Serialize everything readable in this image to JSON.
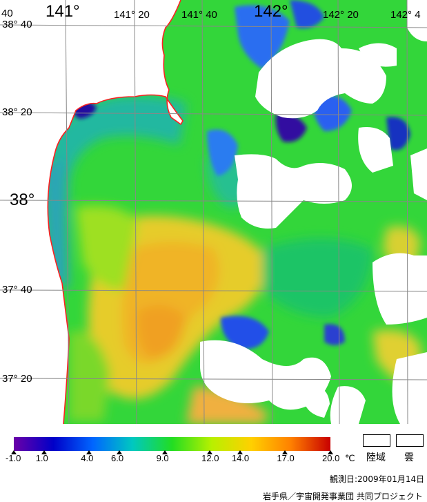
{
  "map": {
    "lon_labels": [
      "141°",
      "141° 20",
      "141° 40",
      "142°",
      "142° 20",
      "142° 4"
    ],
    "lat_labels": [
      "38° 40",
      "38° 20",
      "38°",
      "37° 40",
      "37° 20"
    ],
    "corner_label": "40",
    "coastline_color": "#ff2020",
    "grid_color": "#888888",
    "cloud_color": "#ffffff"
  },
  "colorbar": {
    "unit": "℃",
    "tick_labels": [
      "-1.0",
      "1.0",
      "4.0",
      "6.0",
      "9.0",
      "12.0",
      "14.0",
      "17.0",
      "20.0"
    ],
    "min": -1.0,
    "max": 20.0,
    "stops": [
      "#6a00a8",
      "#0000c8",
      "#0066ff",
      "#00c8c0",
      "#22dd22",
      "#b8f000",
      "#ffd000",
      "#ff8000",
      "#c80000"
    ]
  },
  "legend": {
    "land_label": "陸域",
    "cloud_label": "雲"
  },
  "footer": {
    "observation_date": "観測日:2009年01月14日",
    "credit": "岩手県／宇宙開発事業団 共同プロジェクト"
  }
}
